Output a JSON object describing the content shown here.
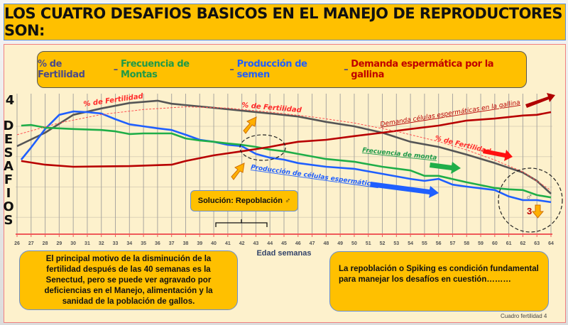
{
  "title": "LOS CUATRO DESAFIOS BASICOS EN EL MANEJO DE REPRODUCTORES SON:",
  "legend": {
    "items": [
      {
        "label": "% de Fertilidad",
        "color": "#4a4a8a"
      },
      {
        "sep": " – "
      },
      {
        "label": "Frecuencia de Montas",
        "color": "#1e9a48"
      },
      {
        "sep": " – "
      },
      {
        "label": "Producción de semen",
        "color": "#1f5fff"
      },
      {
        "sep": " – "
      },
      {
        "label": "Demanda espermática por la gallina",
        "color": "#c00000"
      }
    ],
    "sep": " – "
  },
  "yaxis": {
    "top_label": "4",
    "vertical_label": "DESAFIOS"
  },
  "solution_label": "Solución: Repoblación ♂",
  "note_left": "El principal motivo de la disminución de la fertilidad después de las 40 semanas es la Senectud, pero se puede ver agravado por deficiencias en el Manejo, alimentación y la sanidad de la población de gallos.",
  "note_right": "La repoblación o Spiking es condición fundamental para manejar los desafíos en cuestión………",
  "footer": "Cuadro fertilidad   4",
  "annotations": {
    "fert1": "% de Fertilidad",
    "fert2": "% de Fertilidad",
    "fert3": "% de Fertilidad",
    "demanda": "Demanda células espermáticas en la gallina",
    "frecuencia": "Frecuencia de monta",
    "produccion": "Producción de células espermáticas",
    "three": "3",
    "male": "♂"
  },
  "chart_data": {
    "type": "line",
    "xlabel": "Edad semanas",
    "ylabel": "DESAFIOS",
    "xlim": [
      26,
      64
    ],
    "ylim": [
      0,
      4
    ],
    "xticks": [
      26,
      27,
      28,
      29,
      30,
      31,
      32,
      33,
      34,
      35,
      36,
      37,
      38,
      39,
      40,
      41,
      42,
      43,
      44,
      45,
      46,
      47,
      48,
      49,
      50,
      51,
      52,
      53,
      54,
      55,
      56,
      57,
      58,
      59,
      60,
      61,
      62,
      63,
      64
    ],
    "series": [
      {
        "name": "% de Fertilidad",
        "color": "#555555",
        "x": [
          26,
          28,
          30,
          32,
          34,
          36,
          37,
          40,
          44,
          46,
          48,
          50,
          52,
          54,
          56,
          58,
          60,
          62,
          63,
          64
        ],
        "y": [
          2.61,
          3.01,
          3.54,
          3.73,
          3.89,
          3.96,
          3.87,
          3.75,
          3.58,
          3.49,
          3.33,
          3.2,
          3.01,
          2.74,
          2.59,
          2.36,
          2.11,
          1.83,
          1.58,
          1.2
        ]
      },
      {
        "name": "Producción de semen",
        "color": "#1f5fff",
        "x": [
          26.3,
          27,
          28,
          29,
          30,
          31,
          32,
          33,
          34,
          35,
          36,
          37,
          38,
          39,
          40,
          41,
          42,
          43,
          44,
          45,
          46,
          48,
          50,
          52,
          54,
          55,
          56,
          57,
          58,
          60,
          61,
          62,
          63,
          64
        ],
        "y": [
          2.21,
          2.57,
          3.12,
          3.54,
          3.64,
          3.62,
          3.58,
          3.41,
          3.26,
          3.2,
          3.14,
          3.09,
          2.95,
          2.8,
          2.74,
          2.65,
          2.61,
          2.38,
          2.27,
          2.21,
          2.11,
          2.0,
          1.94,
          1.79,
          1.64,
          1.58,
          1.64,
          1.47,
          1.41,
          1.31,
          1.12,
          1.01,
          1.01,
          0.95
        ]
      },
      {
        "name": "Frecuencia de Montas",
        "color": "#1fae48",
        "x": [
          26.3,
          27,
          28,
          30,
          32,
          33,
          34,
          35,
          37,
          38,
          39,
          40,
          41,
          42,
          43,
          44,
          45,
          46,
          48,
          50,
          52,
          54,
          55,
          56,
          58,
          60,
          61,
          62,
          63,
          64
        ],
        "y": [
          3.22,
          3.24,
          3.16,
          3.12,
          3.09,
          3.05,
          2.97,
          2.99,
          2.99,
          2.84,
          2.78,
          2.74,
          2.69,
          2.65,
          2.59,
          2.51,
          2.46,
          2.38,
          2.23,
          2.15,
          2.0,
          1.89,
          1.73,
          1.73,
          1.54,
          1.37,
          1.33,
          1.31,
          1.16,
          1.09
        ]
      },
      {
        "name": "Demanda espermática por la gallina",
        "color": "#b80000",
        "x": [
          26.3,
          28,
          30,
          34,
          37,
          38,
          40,
          42,
          44,
          45,
          46,
          48,
          50,
          52,
          54,
          56,
          58,
          60,
          62,
          63,
          64
        ],
        "y": [
          2.17,
          2.06,
          2.0,
          2.02,
          2.06,
          2.17,
          2.34,
          2.46,
          2.59,
          2.67,
          2.74,
          2.8,
          2.91,
          3.01,
          3.12,
          3.22,
          3.37,
          3.43,
          3.52,
          3.54,
          3.62
        ]
      },
      {
        "name": "% de Fertilidad (tendencia)",
        "color": "#ff5050",
        "dashed": true,
        "x": [
          26,
          29,
          32,
          35,
          38,
          41,
          44,
          47,
          50,
          53,
          56,
          58,
          60,
          62,
          64
        ],
        "y": [
          2.95,
          3.3,
          3.55,
          3.7,
          3.78,
          3.74,
          3.62,
          3.48,
          3.3,
          3.05,
          2.75,
          2.5,
          2.2,
          1.85,
          1.3
        ]
      }
    ]
  }
}
